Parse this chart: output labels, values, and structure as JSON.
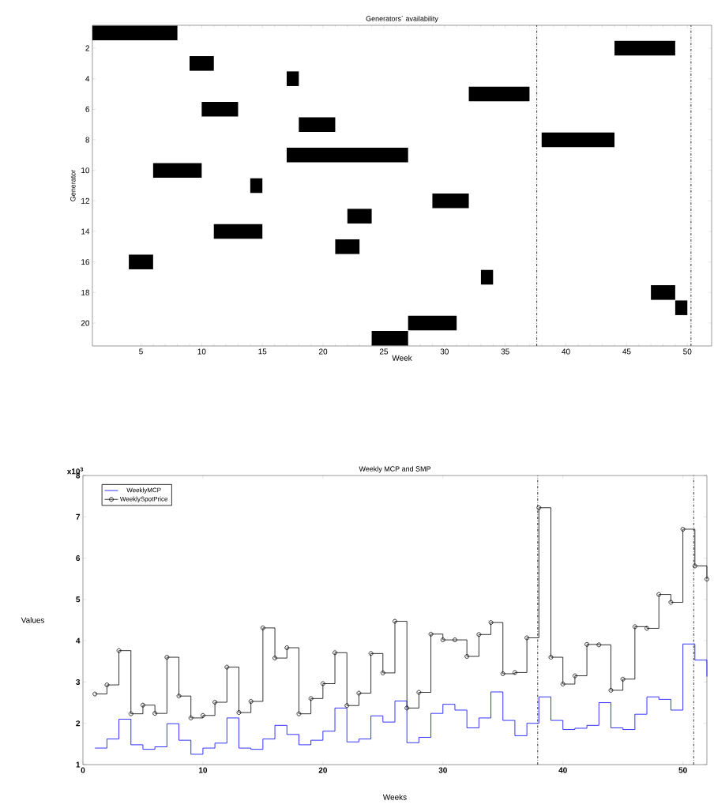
{
  "chart_data": [
    {
      "type": "bar",
      "orientation": "horizontal",
      "title": "Generators` availability",
      "xlabel": "Week",
      "ylabel": "Generator",
      "categories": [
        null,
        "2",
        null,
        "4",
        null,
        "6",
        null,
        "8",
        null,
        "10",
        null,
        "12",
        null,
        "14",
        null,
        "16",
        null,
        "18",
        null,
        "20",
        null
      ],
      "base": [
        1,
        44,
        9,
        17,
        32,
        10,
        18,
        38,
        17,
        6,
        14,
        29,
        22,
        11,
        21,
        4,
        33,
        47,
        49,
        27,
        24
      ],
      "values": [
        7,
        5,
        2,
        1,
        5,
        3,
        3,
        6,
        10,
        4,
        1,
        3,
        2,
        4,
        2,
        2,
        1,
        2,
        1,
        4,
        3
      ],
      "color": "#000000",
      "xlim": [
        1,
        52
      ],
      "xticks": [
        5,
        10,
        15,
        20,
        25,
        30,
        35,
        40,
        45,
        50
      ],
      "ref_lines": [
        {
          "axis": "x",
          "value": 37.6,
          "color": "#000000",
          "line_style": "dashdot"
        },
        {
          "axis": "x",
          "value": 50.3,
          "color": "#000000",
          "line_style": "dashdot"
        }
      ]
    },
    {
      "type": "step",
      "title": "Weekly MCP and SMP",
      "xlabel": "Weeks",
      "ylabel": "Values",
      "annotations": [
        "x10$^{3}$"
      ],
      "x": [
        1,
        2,
        3,
        4,
        5,
        6,
        7,
        8,
        9,
        10,
        11,
        12,
        13,
        14,
        15,
        16,
        17,
        18,
        19,
        20,
        21,
        22,
        23,
        24,
        25,
        26,
        27,
        28,
        29,
        30,
        31,
        32,
        33,
        34,
        35,
        36,
        37,
        38,
        39,
        40,
        41,
        42,
        43,
        44,
        45,
        46,
        47,
        48,
        49,
        50,
        51,
        52
      ],
      "series": [
        {
          "name": "WeeklyMCP",
          "color": "#0000ff",
          "marker": "none",
          "values": [
            1.4,
            1.62,
            2.1,
            1.48,
            1.37,
            1.43,
            1.99,
            1.59,
            1.25,
            1.4,
            1.52,
            2.13,
            1.4,
            1.37,
            1.62,
            1.95,
            1.73,
            1.48,
            1.59,
            1.81,
            2.37,
            1.55,
            1.62,
            2.18,
            2.03,
            2.54,
            1.53,
            1.66,
            2.24,
            2.46,
            2.32,
            1.89,
            2.13,
            2.76,
            2.07,
            1.7,
            2.0,
            2.64,
            2.07,
            1.85,
            1.88,
            1.95,
            2.5,
            1.89,
            1.85,
            2.22,
            2.64,
            2.58,
            2.32,
            3.92,
            3.53,
            3.13
          ]
        },
        {
          "name": "WeeklySpotPrice",
          "color": "#000000",
          "marker": "circle",
          "values": [
            2.71,
            2.93,
            3.76,
            2.23,
            2.44,
            2.24,
            3.6,
            2.66,
            2.13,
            2.19,
            2.51,
            3.36,
            2.26,
            2.53,
            4.31,
            3.58,
            3.83,
            2.23,
            2.6,
            2.96,
            3.71,
            2.43,
            2.73,
            3.69,
            3.22,
            4.47,
            2.37,
            2.75,
            4.16,
            4.02,
            4.02,
            3.62,
            4.15,
            4.44,
            3.2,
            3.23,
            4.07,
            7.22,
            3.6,
            2.95,
            3.15,
            3.91,
            3.9,
            2.8,
            3.07,
            4.34,
            4.3,
            5.12,
            4.93,
            6.7,
            5.81,
            5.49
          ]
        }
      ],
      "xlim": [
        0,
        52
      ],
      "xticks": [
        0,
        10,
        20,
        30,
        40,
        50
      ],
      "ylim": [
        1,
        8
      ],
      "yticks": [
        1,
        2,
        3,
        4,
        5,
        6,
        7,
        8
      ],
      "legend": "top left",
      "ref_lines": [
        {
          "axis": "x",
          "value": 37.9,
          "color": "#000000",
          "line_style": "dashdot"
        },
        {
          "axis": "x",
          "value": 50.9,
          "color": "#000000",
          "line_style": "dashdot"
        }
      ]
    }
  ]
}
